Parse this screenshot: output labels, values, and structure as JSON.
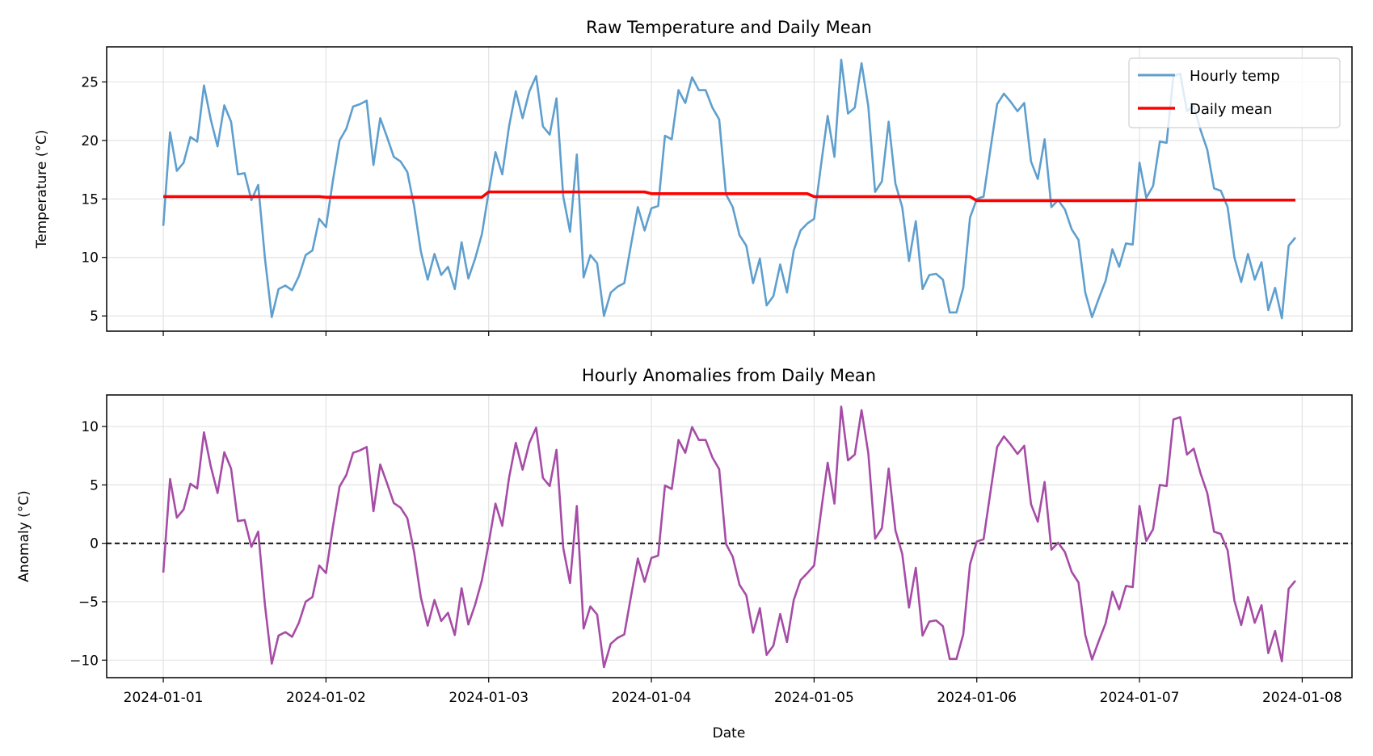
{
  "chart_data": [
    {
      "type": "line",
      "title": "Raw Temperature and Daily Mean",
      "xlabel": "",
      "ylabel": "Temperature (°C)",
      "x_unit": "hours since 2024-01-01 00:00",
      "xlim_days": [
        -0.348,
        7.306
      ],
      "ylim": [
        3.7,
        28.0
      ],
      "yticks": [
        5,
        10,
        15,
        20,
        25
      ],
      "xticks": [
        "2024-01-01",
        "2024-01-02",
        "2024-01-03",
        "2024-01-04",
        "2024-01-05",
        "2024-01-06",
        "2024-01-07",
        "2024-01-08"
      ],
      "grid": true,
      "legend": {
        "placement": "top-right",
        "entries": [
          "Hourly temp",
          "Daily mean"
        ]
      },
      "series": [
        {
          "name": "Hourly temp",
          "color": "#5f9fce",
          "values": [
            12.7,
            20.7,
            17.4,
            18.1,
            20.3,
            19.9,
            24.7,
            21.8,
            19.5,
            23.0,
            21.6,
            17.1,
            17.2,
            14.9,
            16.2,
            9.9,
            4.9,
            7.3,
            7.6,
            7.2,
            8.4,
            10.2,
            10.6,
            13.3,
            12.6,
            16.5,
            20.0,
            21.0,
            22.9,
            23.1,
            23.4,
            17.9,
            21.9,
            20.3,
            18.6,
            18.2,
            17.3,
            14.4,
            10.5,
            8.1,
            10.3,
            8.5,
            9.2,
            7.3,
            11.3,
            8.2,
            9.9,
            12.0,
            15.6,
            19.0,
            17.1,
            21.2,
            24.2,
            21.9,
            24.2,
            25.5,
            21.2,
            20.5,
            23.6,
            15.2,
            12.2,
            18.8,
            8.3,
            10.2,
            9.5,
            5.0,
            7.0,
            7.5,
            7.8,
            11.1,
            14.3,
            12.3,
            14.2,
            14.4,
            20.4,
            20.1,
            24.3,
            23.2,
            25.4,
            24.3,
            24.3,
            22.8,
            21.8,
            15.4,
            14.3,
            11.9,
            11.0,
            7.8,
            9.9,
            5.9,
            6.7,
            9.4,
            7.0,
            10.6,
            12.3,
            12.9,
            13.3,
            17.8,
            22.1,
            18.6,
            26.9,
            22.3,
            22.8,
            26.6,
            22.9,
            15.6,
            16.5,
            21.6,
            16.3,
            14.3,
            9.7,
            13.1,
            7.3,
            8.5,
            8.6,
            8.1,
            5.3,
            5.3,
            7.4,
            13.4,
            15.0,
            15.2,
            19.2,
            23.1,
            24.0,
            23.3,
            22.5,
            23.2,
            18.2,
            16.7,
            20.1,
            14.3,
            14.9,
            14.1,
            12.4,
            11.5,
            7.0,
            4.9,
            6.5,
            8.0,
            10.7,
            9.2,
            11.2,
            11.1,
            18.1,
            15.1,
            16.1,
            19.9,
            19.8,
            25.5,
            25.7,
            22.5,
            23.0,
            20.9,
            19.2,
            15.9,
            15.7,
            14.3,
            10.0,
            7.9,
            10.3,
            8.1,
            9.6,
            5.5,
            7.4,
            4.8,
            11.0,
            11.7
          ]
        },
        {
          "name": "Daily mean",
          "color": "#ff0000",
          "daily_values": [
            15.2,
            15.15,
            15.6,
            15.45,
            15.2,
            14.85,
            14.9
          ]
        }
      ]
    },
    {
      "type": "line",
      "title": "Hourly Anomalies from Daily Mean",
      "xlabel": "Date",
      "ylabel": "Anomaly (°C)",
      "xlim_days": [
        -0.348,
        7.306
      ],
      "ylim": [
        -11.5,
        12.7
      ],
      "yticks": [
        -10,
        -5,
        0,
        5,
        10
      ],
      "ytick_labels": [
        "−10",
        "−5",
        "0",
        "5",
        "10"
      ],
      "xticks": [
        "2024-01-01",
        "2024-01-02",
        "2024-01-03",
        "2024-01-04",
        "2024-01-05",
        "2024-01-06",
        "2024-01-07",
        "2024-01-08"
      ],
      "grid": true,
      "reference_line": {
        "y": 0,
        "style": "dashed",
        "color": "#000000"
      },
      "series": [
        {
          "name": "Anomaly",
          "color": "#a64ca6",
          "derived_from": "Hourly temp minus Daily mean"
        }
      ]
    }
  ]
}
